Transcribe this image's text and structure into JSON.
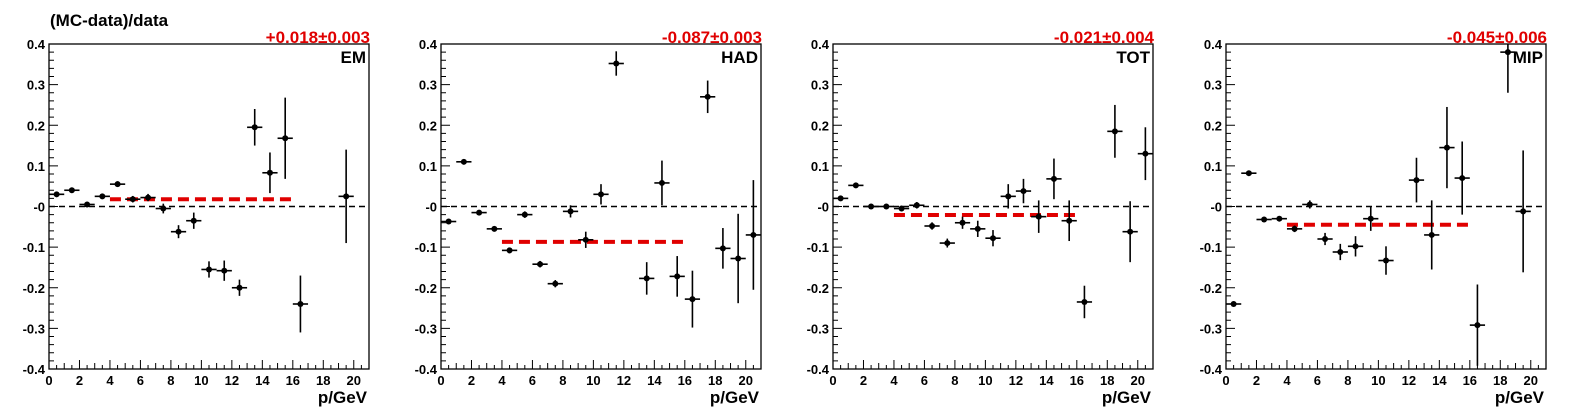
{
  "figure": {
    "ylabel": "(MC-data)/data",
    "xlabel": "p/GeV"
  },
  "colors": {
    "fit": "#e00000",
    "points": "#000000",
    "reference": "#000000"
  },
  "chart_data": [
    {
      "type": "scatter",
      "panel_label": "EM",
      "fit_label": "+0.018±0.003",
      "fit_value": 0.018,
      "fit_range": [
        4,
        16
      ],
      "xlabel": "p/GeV",
      "xlim": [
        0,
        21
      ],
      "ylim": [
        -0.4,
        0.4
      ],
      "xticks": [
        0,
        2,
        4,
        6,
        8,
        10,
        12,
        14,
        16,
        18,
        20
      ],
      "yticks": [
        "-0.4",
        "-0.3",
        "-0.2",
        "-0.1",
        "-0",
        "0.1",
        "0.2",
        "0.3",
        "0.4"
      ],
      "points": [
        {
          "x": 0.5,
          "y": 0.03,
          "err": 0.006
        },
        {
          "x": 1.5,
          "y": 0.04,
          "err": 0.006
        },
        {
          "x": 2.5,
          "y": 0.005,
          "err": 0.006
        },
        {
          "x": 3.5,
          "y": 0.025,
          "err": 0.006
        },
        {
          "x": 4.5,
          "y": 0.055,
          "err": 0.007
        },
        {
          "x": 5.5,
          "y": 0.018,
          "err": 0.008
        },
        {
          "x": 6.5,
          "y": 0.022,
          "err": 0.009
        },
        {
          "x": 7.5,
          "y": -0.005,
          "err": 0.012
        },
        {
          "x": 8.5,
          "y": -0.062,
          "err": 0.016
        },
        {
          "x": 9.5,
          "y": -0.035,
          "err": 0.02
        },
        {
          "x": 10.5,
          "y": -0.155,
          "err": 0.02
        },
        {
          "x": 11.5,
          "y": -0.158,
          "err": 0.025
        },
        {
          "x": 12.5,
          "y": -0.2,
          "err": 0.02
        },
        {
          "x": 13.5,
          "y": 0.195,
          "err": 0.045
        },
        {
          "x": 14.5,
          "y": 0.083,
          "err": 0.05
        },
        {
          "x": 15.5,
          "y": 0.168,
          "err": 0.1
        },
        {
          "x": 16.5,
          "y": -0.24,
          "err": 0.07
        },
        {
          "x": 19.5,
          "y": 0.025,
          "err": 0.115
        }
      ]
    },
    {
      "type": "scatter",
      "panel_label": "HAD",
      "fit_label": "-0.087±0.003",
      "fit_value": -0.087,
      "fit_range": [
        4,
        16
      ],
      "xlabel": "p/GeV",
      "xlim": [
        0,
        21
      ],
      "ylim": [
        -0.4,
        0.4
      ],
      "xticks": [
        0,
        2,
        4,
        6,
        8,
        10,
        12,
        14,
        16,
        18,
        20
      ],
      "yticks": [
        "-0.4",
        "-0.3",
        "-0.2",
        "-0.1",
        "-0",
        "0.1",
        "0.2",
        "0.3",
        "0.4"
      ],
      "points": [
        {
          "x": 0.5,
          "y": -0.037,
          "err": 0.005
        },
        {
          "x": 1.5,
          "y": 0.11,
          "err": 0.006
        },
        {
          "x": 2.5,
          "y": -0.015,
          "err": 0.006
        },
        {
          "x": 3.5,
          "y": -0.055,
          "err": 0.006
        },
        {
          "x": 4.5,
          "y": -0.108,
          "err": 0.007
        },
        {
          "x": 5.5,
          "y": -0.02,
          "err": 0.008
        },
        {
          "x": 6.5,
          "y": -0.142,
          "err": 0.008
        },
        {
          "x": 7.5,
          "y": -0.19,
          "err": 0.009
        },
        {
          "x": 8.5,
          "y": -0.012,
          "err": 0.015
        },
        {
          "x": 9.5,
          "y": -0.082,
          "err": 0.02
        },
        {
          "x": 10.5,
          "y": 0.03,
          "err": 0.025
        },
        {
          "x": 11.5,
          "y": 0.352,
          "err": 0.03
        },
        {
          "x": 13.5,
          "y": -0.177,
          "err": 0.04
        },
        {
          "x": 14.5,
          "y": 0.058,
          "err": 0.055
        },
        {
          "x": 15.5,
          "y": -0.172,
          "err": 0.05
        },
        {
          "x": 16.5,
          "y": -0.228,
          "err": 0.07
        },
        {
          "x": 17.5,
          "y": 0.27,
          "err": 0.04
        },
        {
          "x": 18.5,
          "y": -0.103,
          "err": 0.05
        },
        {
          "x": 19.5,
          "y": -0.128,
          "err": 0.11
        },
        {
          "x": 20.5,
          "y": -0.07,
          "err": 0.135
        }
      ]
    },
    {
      "type": "scatter",
      "panel_label": "TOT",
      "fit_label": "-0.021±0.004",
      "fit_value": -0.021,
      "fit_range": [
        4,
        16
      ],
      "xlabel": "p/GeV",
      "xlim": [
        0,
        21
      ],
      "ylim": [
        -0.4,
        0.4
      ],
      "xticks": [
        0,
        2,
        4,
        6,
        8,
        10,
        12,
        14,
        16,
        18,
        20
      ],
      "yticks": [
        "-0.4",
        "-0.3",
        "-0.2",
        "-0.1",
        "-0",
        "0.1",
        "0.2",
        "0.3",
        "0.4"
      ],
      "points": [
        {
          "x": 0.5,
          "y": 0.02,
          "err": 0.005
        },
        {
          "x": 1.5,
          "y": 0.052,
          "err": 0.006
        },
        {
          "x": 2.5,
          "y": 0.0,
          "err": 0.006
        },
        {
          "x": 3.5,
          "y": 0.0,
          "err": 0.006
        },
        {
          "x": 4.5,
          "y": -0.005,
          "err": 0.007
        },
        {
          "x": 5.5,
          "y": 0.003,
          "err": 0.008
        },
        {
          "x": 6.5,
          "y": -0.048,
          "err": 0.009
        },
        {
          "x": 7.5,
          "y": -0.09,
          "err": 0.011
        },
        {
          "x": 8.5,
          "y": -0.04,
          "err": 0.015
        },
        {
          "x": 9.5,
          "y": -0.055,
          "err": 0.02
        },
        {
          "x": 10.5,
          "y": -0.078,
          "err": 0.02
        },
        {
          "x": 11.5,
          "y": 0.025,
          "err": 0.03
        },
        {
          "x": 12.5,
          "y": 0.038,
          "err": 0.03
        },
        {
          "x": 13.5,
          "y": -0.025,
          "err": 0.04
        },
        {
          "x": 14.5,
          "y": 0.068,
          "err": 0.05
        },
        {
          "x": 15.5,
          "y": -0.035,
          "err": 0.05
        },
        {
          "x": 16.5,
          "y": -0.235,
          "err": 0.04
        },
        {
          "x": 18.5,
          "y": 0.185,
          "err": 0.065
        },
        {
          "x": 19.5,
          "y": -0.062,
          "err": 0.075
        },
        {
          "x": 20.5,
          "y": 0.13,
          "err": 0.065
        }
      ]
    },
    {
      "type": "scatter",
      "panel_label": "MIP",
      "fit_label": "-0.045±0.006",
      "fit_value": -0.045,
      "fit_range": [
        4,
        16
      ],
      "xlabel": "p/GeV",
      "xlim": [
        0,
        21
      ],
      "ylim": [
        -0.4,
        0.4
      ],
      "xticks": [
        0,
        2,
        4,
        6,
        8,
        10,
        12,
        14,
        16,
        18,
        20
      ],
      "yticks": [
        "-0.4",
        "-0.3",
        "-0.2",
        "-0.1",
        "-0",
        "0.1",
        "0.2",
        "0.3",
        "0.4"
      ],
      "points": [
        {
          "x": 0.5,
          "y": -0.24,
          "err": 0.005
        },
        {
          "x": 1.5,
          "y": 0.082,
          "err": 0.006
        },
        {
          "x": 2.5,
          "y": -0.032,
          "err": 0.006
        },
        {
          "x": 3.5,
          "y": -0.03,
          "err": 0.006
        },
        {
          "x": 4.5,
          "y": -0.055,
          "err": 0.008
        },
        {
          "x": 5.5,
          "y": 0.005,
          "err": 0.01
        },
        {
          "x": 6.5,
          "y": -0.08,
          "err": 0.015
        },
        {
          "x": 7.5,
          "y": -0.112,
          "err": 0.02
        },
        {
          "x": 8.5,
          "y": -0.098,
          "err": 0.025
        },
        {
          "x": 9.5,
          "y": -0.03,
          "err": 0.03
        },
        {
          "x": 10.5,
          "y": -0.133,
          "err": 0.035
        },
        {
          "x": 12.5,
          "y": 0.065,
          "err": 0.055
        },
        {
          "x": 13.5,
          "y": -0.07,
          "err": 0.085
        },
        {
          "x": 14.5,
          "y": 0.145,
          "err": 0.1
        },
        {
          "x": 15.5,
          "y": 0.07,
          "err": 0.09
        },
        {
          "x": 16.5,
          "y": -0.292,
          "err": 0.1
        },
        {
          "x": 18.5,
          "y": 0.38,
          "err": 0.1
        },
        {
          "x": 19.5,
          "y": -0.012,
          "err": 0.15
        }
      ]
    }
  ]
}
